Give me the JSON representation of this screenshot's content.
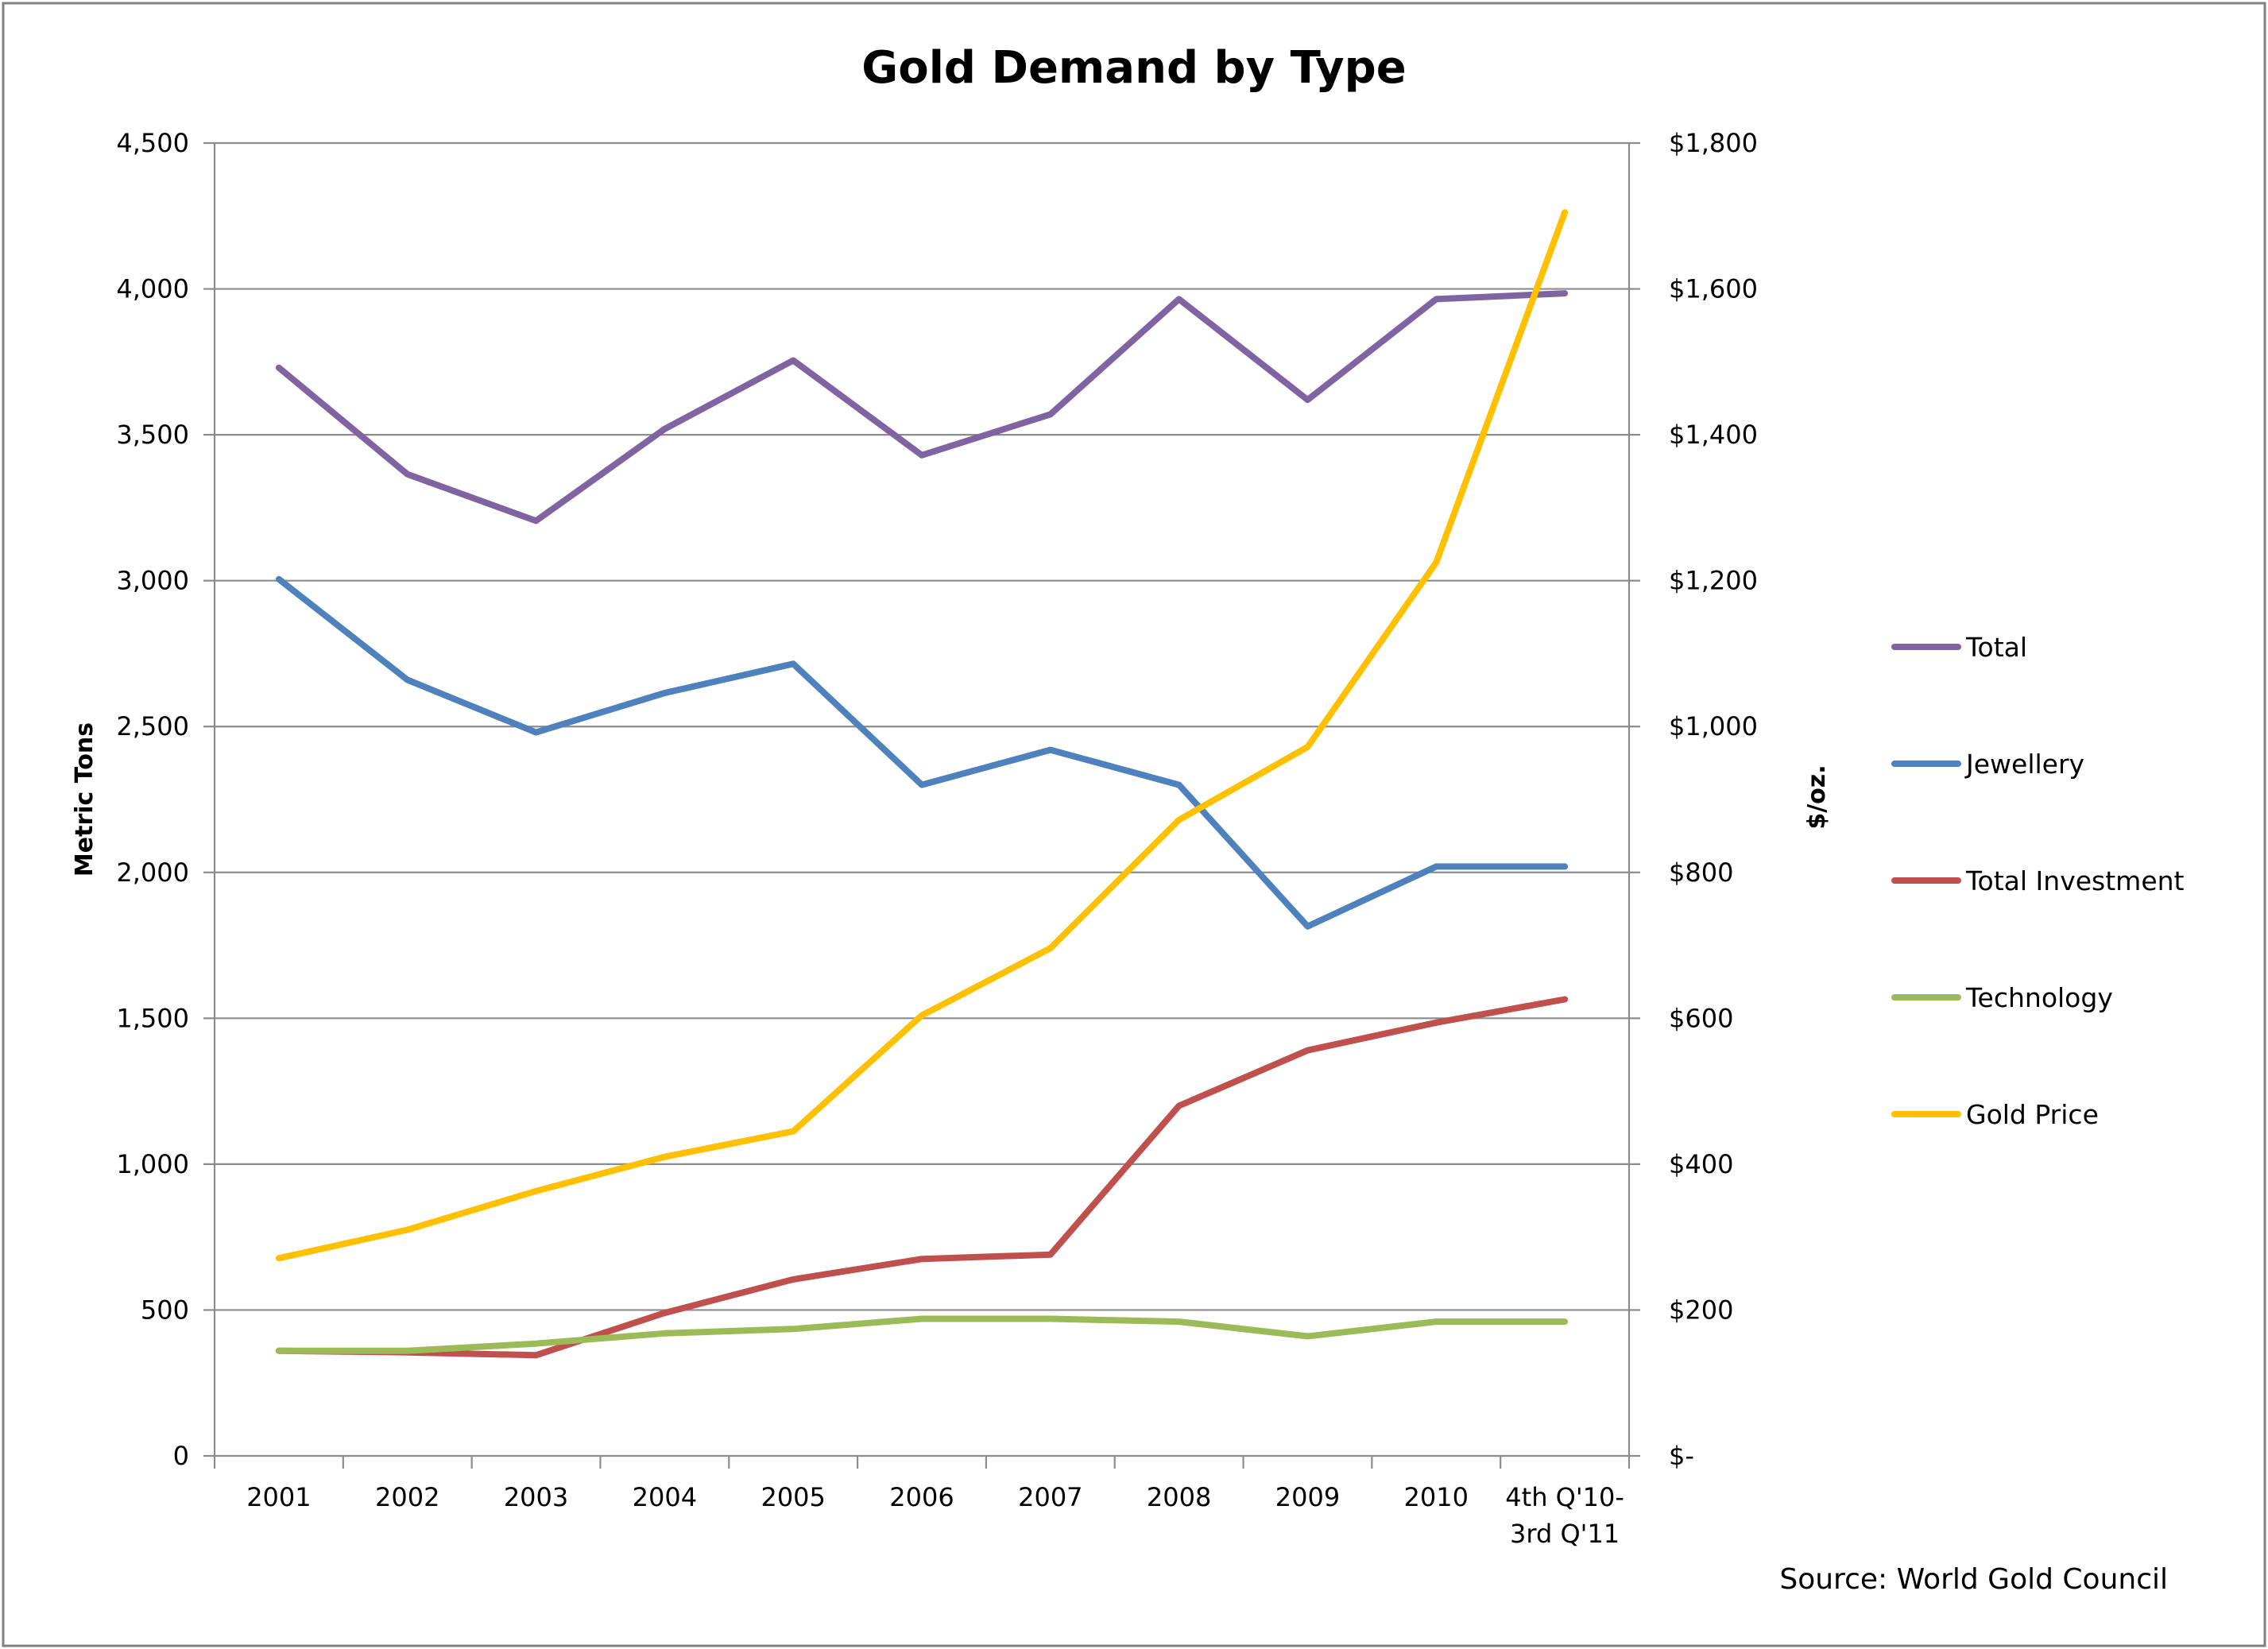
{
  "chart_data": {
    "type": "line",
    "title": "Gold Demand by Type",
    "xlabel": "",
    "ylabel": "Metric Tons",
    "y2label": "$/oz.",
    "categories": [
      "2001",
      "2002",
      "2003",
      "2004",
      "2005",
      "2006",
      "2007",
      "2008",
      "2009",
      "2010",
      "4th Q'10-\n3rd Q'11"
    ],
    "category_lines": [
      [
        "2001"
      ],
      [
        "2002"
      ],
      [
        "2003"
      ],
      [
        "2004"
      ],
      [
        "2005"
      ],
      [
        "2006"
      ],
      [
        "2007"
      ],
      [
        "2008"
      ],
      [
        "2009"
      ],
      [
        "2010"
      ],
      [
        "4th Q'10-",
        "3rd Q'11"
      ]
    ],
    "ylim": [
      0,
      4500
    ],
    "y2lim": [
      0,
      1800
    ],
    "yticks": [
      0,
      500,
      1000,
      1500,
      2000,
      2500,
      3000,
      3500,
      4000,
      4500
    ],
    "ytick_labels": [
      "0",
      "500",
      "1,000",
      "1,500",
      "2,000",
      "2,500",
      "3,000",
      "3,500",
      "4,000",
      "4,500"
    ],
    "y2ticks": [
      0,
      200,
      400,
      600,
      800,
      1000,
      1200,
      1400,
      1600,
      1800
    ],
    "y2tick_labels": [
      "$-",
      "$200",
      "$400",
      "$600",
      "$800",
      "$1,000",
      "$1,200",
      "$1,400",
      "$1,600",
      "$1,800"
    ],
    "grid": true,
    "legend_position": "right",
    "series": [
      {
        "name": "Total",
        "axis": "left",
        "color": "#8064a2",
        "values": [
          3730,
          3365,
          3205,
          3520,
          3755,
          3430,
          3570,
          3965,
          3620,
          3965,
          3985
        ]
      },
      {
        "name": "Jewellery",
        "axis": "left",
        "color": "#4f81bd",
        "values": [
          3005,
          2660,
          2480,
          2615,
          2715,
          2300,
          2420,
          2300,
          1815,
          2020,
          2020
        ]
      },
      {
        "name": "Total Investment",
        "axis": "left",
        "color": "#c0504d",
        "values": [
          360,
          355,
          345,
          490,
          605,
          675,
          690,
          1200,
          1390,
          1485,
          1565
        ]
      },
      {
        "name": "Technology",
        "axis": "left",
        "color": "#9bbb59",
        "values": [
          360,
          360,
          385,
          420,
          435,
          470,
          470,
          460,
          410,
          460,
          460
        ]
      },
      {
        "name": "Gold Price",
        "axis": "right",
        "color": "#ffc000",
        "values": [
          271,
          310,
          363,
          410,
          445,
          604,
          696,
          872,
          972,
          1225,
          1705
        ]
      }
    ],
    "annotations": [
      "Source: World Gold Council"
    ]
  }
}
